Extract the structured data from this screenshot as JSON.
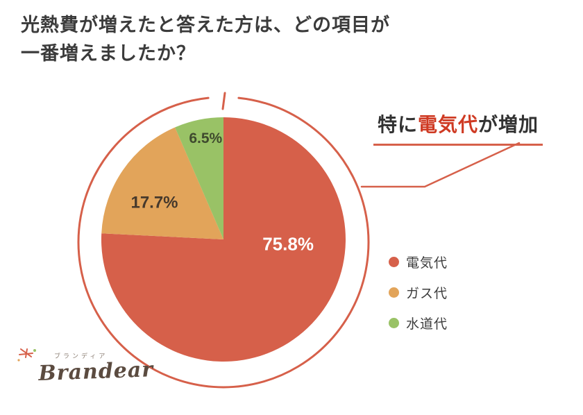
{
  "title": {
    "line1": "光熱費が増えたと答えた方は、どの項目が",
    "line2": "一番増えましたか？"
  },
  "annotation": {
    "prefix": "特に",
    "highlight": "電気代",
    "suffix": "が増加",
    "highlight_color": "#cf3a23"
  },
  "chart_data": {
    "type": "pie",
    "title": "光熱費が増えたと答えた方は、どの項目が一番増えましたか？",
    "unit": "%",
    "start_angle_deg": 0,
    "direction": "clockwise",
    "legend_position": "right",
    "accent_color": "#d6604a",
    "slices": [
      {
        "label": "電気代",
        "value": 75.8,
        "color": "#d6604a",
        "text_color": "#ffffff",
        "label_angle": 94,
        "label_r": 0.53,
        "label_size": 26
      },
      {
        "label": "ガス代",
        "value": 17.7,
        "color": "#e2a45a",
        "text_color": "#46392c",
        "label_angle": 298,
        "label_r": 0.64,
        "label_size": 24
      },
      {
        "label": "水道代",
        "value": 6.5,
        "color": "#99c266",
        "text_color": "#3f4a2e",
        "label_angle": 350,
        "label_r": 0.84,
        "label_size": 21
      }
    ]
  },
  "logo": {
    "name": "Brandear",
    "kana": "ブランディア"
  }
}
